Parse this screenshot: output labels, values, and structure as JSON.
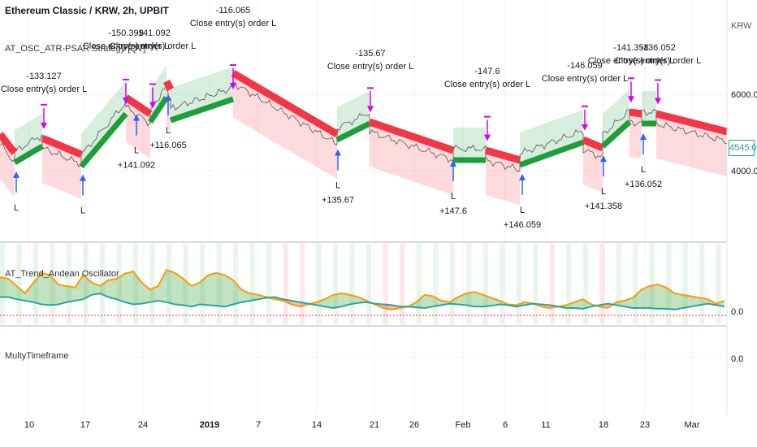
{
  "header": {
    "title": "Ethereum Classic / KRW, 2h, UPBIT",
    "strategy_label": "AT_OSC_ATR-PSAR Strategy [QV]",
    "currency": "KRW",
    "current_price": "4545.0"
  },
  "panes": {
    "oscillator_label": "AT_Trend_Andean Oscillator",
    "mtf_label": "MultyTimeframe"
  },
  "chart_data": [
    {
      "type": "line",
      "name": "price",
      "price_axis": {
        "ticks": [
          "6000.0",
          "4000.0"
        ],
        "values": [
          6000,
          4000
        ]
      },
      "x_ticks": [
        "10",
        "17",
        "24",
        "2019",
        "7",
        "14",
        "21",
        "26",
        "Feb",
        "6",
        "11",
        "18",
        "23",
        "Mar"
      ],
      "x_tick_bold": [
        false,
        false,
        false,
        true,
        false,
        false,
        false,
        false,
        false,
        false,
        false,
        false,
        false,
        false
      ],
      "trend_segments": [
        {
          "color": "red",
          "x0": 0,
          "x1": 18,
          "y0": 165,
          "y1": 188
        },
        {
          "color": "green",
          "x0": 18,
          "x1": 52,
          "y0": 200,
          "y1": 180
        },
        {
          "color": "red",
          "x0": 52,
          "x1": 100,
          "y0": 170,
          "y1": 190
        },
        {
          "color": "green",
          "x0": 100,
          "x1": 155,
          "y0": 205,
          "y1": 140
        },
        {
          "color": "red",
          "x0": 155,
          "x1": 185,
          "y0": 120,
          "y1": 140
        },
        {
          "color": "green",
          "x0": 185,
          "x1": 205,
          "y0": 150,
          "y1": 120
        },
        {
          "color": "red",
          "x0": 205,
          "x1": 210,
          "y0": 100,
          "y1": 110
        },
        {
          "color": "green",
          "x0": 210,
          "x1": 287,
          "y0": 148,
          "y1": 122
        },
        {
          "color": "red",
          "x0": 287,
          "x1": 415,
          "y0": 90,
          "y1": 165
        },
        {
          "color": "green",
          "x0": 415,
          "x1": 455,
          "y0": 172,
          "y1": 152
        },
        {
          "color": "red",
          "x0": 455,
          "x1": 558,
          "y0": 150,
          "y1": 185
        },
        {
          "color": "green",
          "x0": 558,
          "x1": 598,
          "y0": 197,
          "y1": 197
        },
        {
          "color": "red",
          "x0": 598,
          "x1": 640,
          "y0": 185,
          "y1": 197
        },
        {
          "color": "green",
          "x0": 640,
          "x1": 718,
          "y0": 203,
          "y1": 175
        },
        {
          "color": "red",
          "x0": 718,
          "x1": 742,
          "y0": 172,
          "y1": 182
        },
        {
          "color": "green",
          "x0": 742,
          "x1": 775,
          "y0": 180,
          "y1": 150
        },
        {
          "color": "red",
          "x0": 775,
          "x1": 790,
          "y0": 138,
          "y1": 140
        },
        {
          "color": "green",
          "x0": 790,
          "x1": 808,
          "y0": 152,
          "y1": 152
        },
        {
          "color": "red",
          "x0": 808,
          "x1": 895,
          "y0": 140,
          "y1": 162
        }
      ],
      "entries": [
        {
          "x": 20,
          "label": "L",
          "profit": ""
        },
        {
          "x": 102,
          "label": "L",
          "profit": ""
        },
        {
          "x": 168,
          "label": "L",
          "profit": "+141.092"
        },
        {
          "x": 207,
          "label": "L",
          "profit": "+116.065"
        },
        {
          "x": 416,
          "label": "L",
          "profit": "+135.67"
        },
        {
          "x": 558,
          "label": "L",
          "profit": "+147.6"
        },
        {
          "x": 643,
          "label": "L",
          "profit": "+146.059"
        },
        {
          "x": 743,
          "label": "L",
          "profit": "+141.358"
        },
        {
          "x": 792,
          "label": "L",
          "profit": "+136.052"
        }
      ],
      "exits": [
        {
          "x": 54,
          "text": "Close entry(s) order L",
          "value": "-133.127"
        },
        {
          "x": 155,
          "text": "Close entry(s) order L",
          "value": "-150.399"
        },
        {
          "x": 188,
          "text": "Close entry(s) order L",
          "value": "-141.092"
        },
        {
          "x": 287,
          "text": "Close entry(s) order L",
          "value": "-116.065"
        },
        {
          "x": 456,
          "text": "Close entry(s) order L",
          "value": "-135.67"
        },
        {
          "x": 600,
          "text": "Close entry(s) order L",
          "value": "-147.6"
        },
        {
          "x": 720,
          "text": "Close entry(s) order L",
          "value": "-146.059"
        },
        {
          "x": 777,
          "text": "Close entry(s) order L",
          "value": "-141.358"
        },
        {
          "x": 810,
          "text": "Close entry(s) order L",
          "value": "-136.052"
        }
      ]
    },
    {
      "type": "area",
      "name": "oscillator",
      "axis": {
        "ticks": [
          "0.0"
        ],
        "values": [
          0
        ]
      },
      "bull": [
        52,
        50,
        40,
        30,
        44,
        58,
        55,
        42,
        40,
        38,
        55,
        45,
        40,
        48,
        50,
        57,
        60,
        45,
        35,
        40,
        62,
        58,
        50,
        40,
        45,
        55,
        58,
        55,
        48,
        35,
        30,
        28,
        25,
        22,
        20,
        15,
        12,
        15,
        18,
        22,
        28,
        30,
        28,
        25,
        20,
        15,
        10,
        8,
        10,
        12,
        18,
        28,
        26,
        20,
        18,
        25,
        30,
        32,
        28,
        24,
        20,
        15,
        14,
        18,
        16,
        12,
        10,
        12,
        14,
        18,
        22,
        15,
        12,
        10,
        18,
        20,
        24,
        35,
        40,
        42,
        38,
        30,
        28,
        26,
        24,
        22,
        16,
        20
      ],
      "bear": [
        25,
        25,
        22,
        20,
        18,
        15,
        14,
        15,
        18,
        20,
        22,
        28,
        30,
        25,
        22,
        18,
        15,
        16,
        18,
        20,
        18,
        15,
        14,
        12,
        15,
        14,
        13,
        12,
        15,
        18,
        20,
        22,
        24,
        25,
        22,
        20,
        18,
        16,
        14,
        12,
        10,
        12,
        15,
        17,
        18,
        16,
        15,
        14,
        12,
        12,
        11,
        10,
        12,
        14,
        16,
        15,
        14,
        12,
        12,
        13,
        15,
        14,
        12,
        14,
        16,
        15,
        14,
        12,
        10,
        10,
        9,
        12,
        14,
        16,
        14,
        12,
        10,
        10,
        10,
        9,
        9,
        8,
        10,
        12,
        14,
        16,
        14,
        12
      ]
    },
    {
      "type": "line",
      "name": "MultyTimeframe",
      "axis": {
        "ticks": [
          "0.0"
        ],
        "values": [
          0
        ]
      },
      "values": []
    }
  ]
}
